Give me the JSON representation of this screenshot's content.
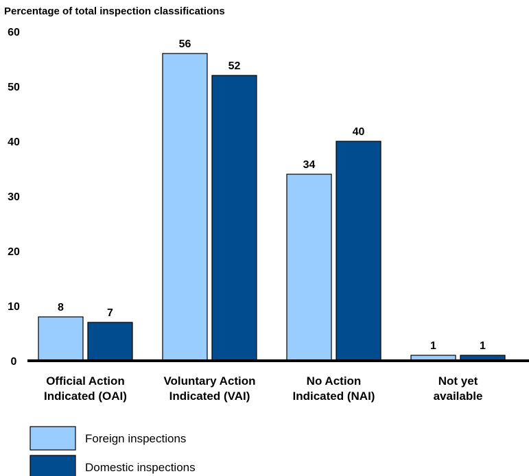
{
  "chart_data": {
    "type": "bar",
    "ylabel": "Percentage of total inspection classifications",
    "ylim": [
      0,
      60
    ],
    "yticks": [
      0,
      10,
      20,
      30,
      40,
      50,
      60
    ],
    "categories": [
      [
        "Official Action",
        "Indicated (OAI)"
      ],
      [
        "Voluntary Action",
        "Indicated (VAI)"
      ],
      [
        "No Action",
        "Indicated (NAI)"
      ],
      [
        "Not yet",
        "available"
      ]
    ],
    "series": [
      {
        "name": "Foreign inspections",
        "values": [
          8,
          56,
          34,
          1
        ],
        "color": "#99ccff"
      },
      {
        "name": "Domestic inspections",
        "values": [
          7,
          52,
          40,
          1
        ],
        "color": "#004c8f"
      }
    ],
    "legend_position": "bottom-left",
    "grid": false
  }
}
